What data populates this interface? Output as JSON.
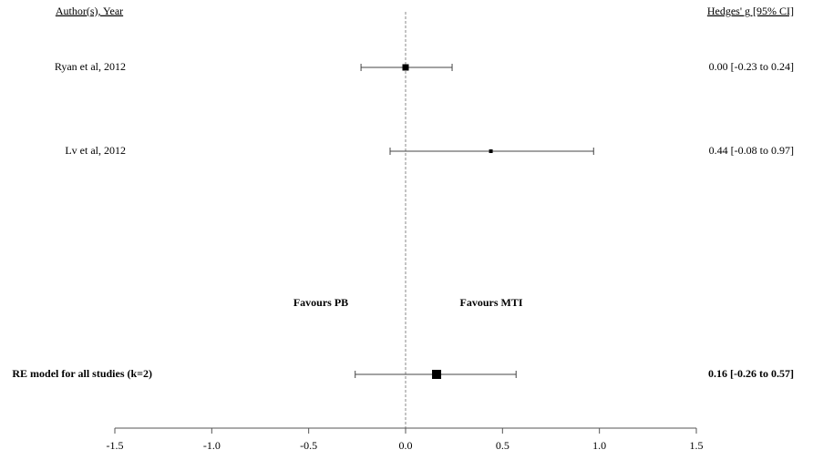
{
  "chart_data": {
    "type": "forest",
    "column_headers": {
      "study": "Author(s), Year",
      "effect": "Hedges' g [95% CI]"
    },
    "studies": [
      "Ryan et al, 2012",
      "Lv et al, 2012"
    ],
    "values": [
      0.0,
      0.44
    ],
    "ci_lower": [
      -0.23,
      -0.08
    ],
    "ci_upper": [
      0.24,
      0.97
    ],
    "value_labels": [
      "0.00 [-0.23 to 0.24]",
      "0.44 [-0.08 to 0.97]"
    ],
    "summary": {
      "label": "RE model for all studies (k=2)",
      "value": 0.16,
      "ci_lower": -0.26,
      "ci_upper": 0.57,
      "value_label": "0.16 [-0.26 to 0.57]"
    },
    "annotations": [
      "Favours PB",
      "Favours MTI"
    ],
    "xlim": [
      -1.5,
      1.5
    ],
    "xticks": [
      -1.5,
      {
        "value": -1,
        "label": "-1.0"
      },
      -0.5,
      {
        "value": 0,
        "label": "0.0"
      },
      0.5,
      {
        "value": 1,
        "label": "1.0"
      },
      1.5
    ],
    "reference_line": 0,
    "color": "#000000"
  }
}
